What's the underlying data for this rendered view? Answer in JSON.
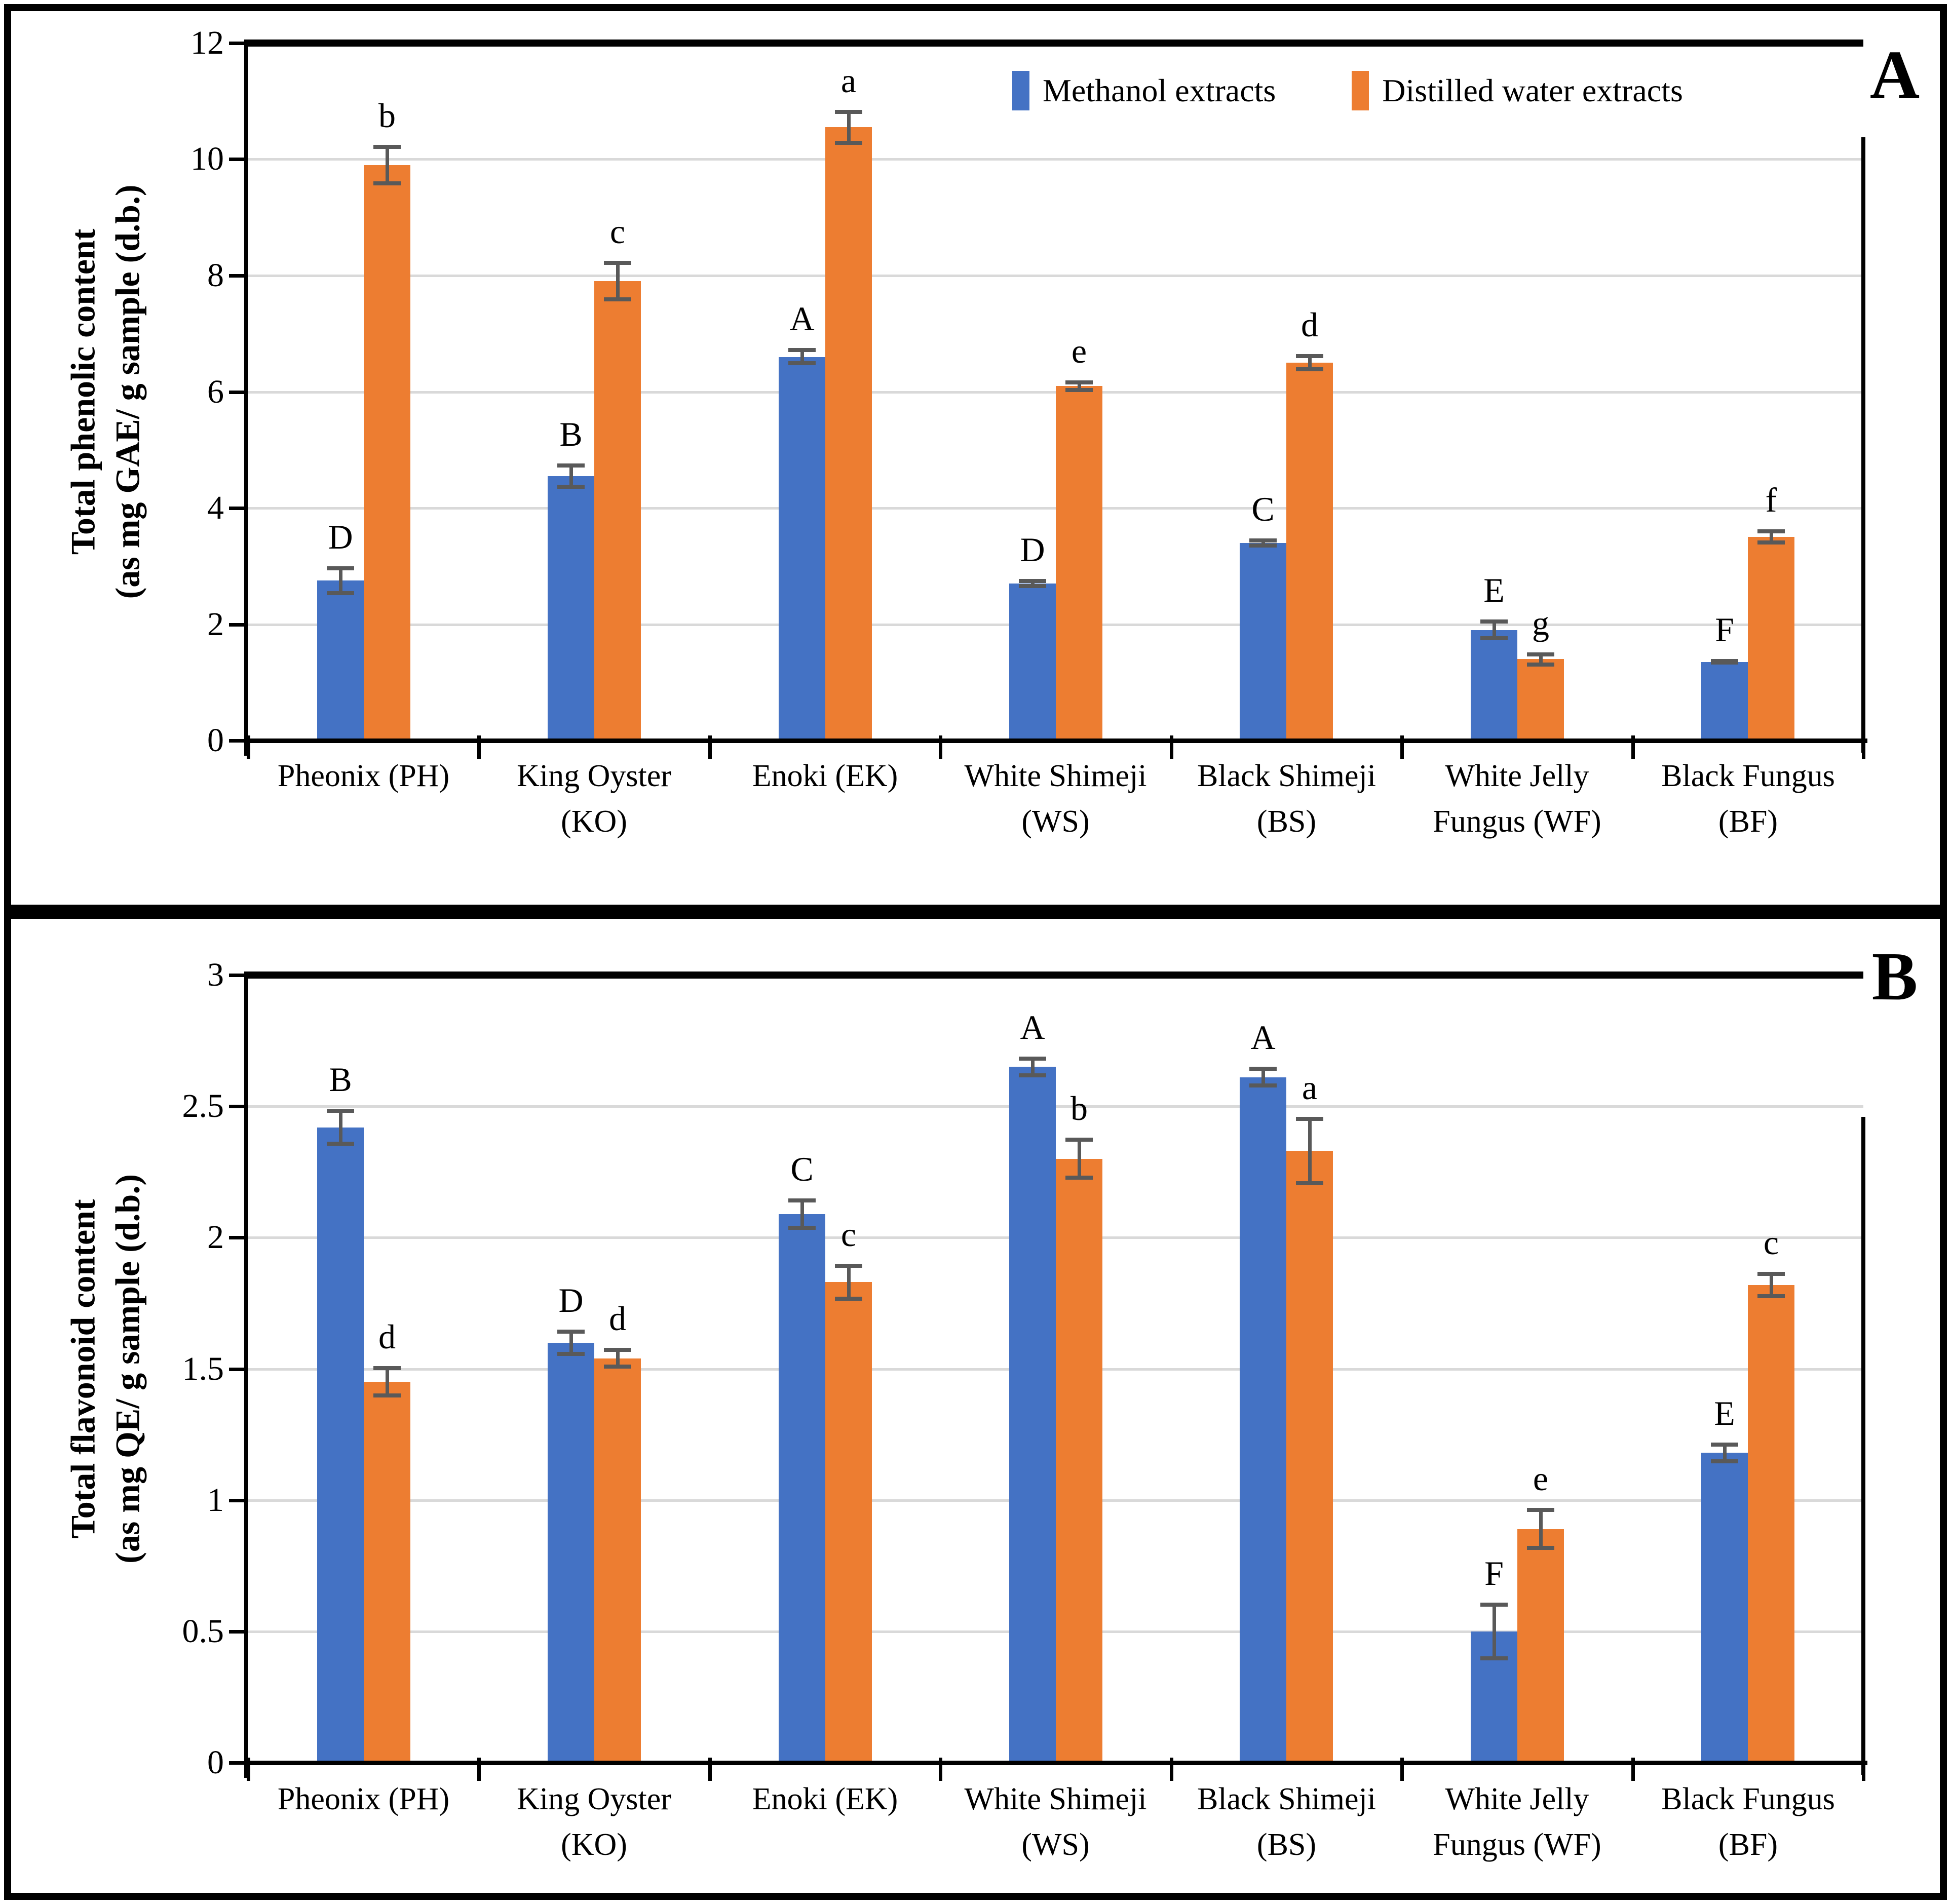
{
  "figure": {
    "background": "#ffffff",
    "border_color": "#000000"
  },
  "legend": {
    "items": [
      {
        "label": "Methanol extracts",
        "color": "#4472C4"
      },
      {
        "label": "Distilled water extracts",
        "color": "#ED7D31"
      }
    ]
  },
  "chart_data": [
    {
      "type": "bar",
      "panel_label": "A",
      "title": "",
      "xlabel": "",
      "ylabel_lines": [
        "Total phenolic content",
        "(as mg GAE/ g sample (d.b.)"
      ],
      "ylim": [
        0,
        12
      ],
      "yticks": [
        0,
        2,
        4,
        6,
        8,
        10,
        12
      ],
      "ytick_labels": [
        "0",
        "2",
        "4",
        "6",
        "8",
        "10",
        "12"
      ],
      "grid": true,
      "gridline_color": "#D9D9D9",
      "error_bar_color": "#595959",
      "legend_visible": true,
      "legend_position": "top-inside",
      "categories": [
        {
          "code": "PH",
          "lines": [
            "Pheonix (PH)"
          ]
        },
        {
          "code": "KO",
          "lines": [
            "King Oyster",
            "(KO)"
          ]
        },
        {
          "code": "EK",
          "lines": [
            "Enoki (EK)"
          ]
        },
        {
          "code": "WS",
          "lines": [
            "White Shimeji",
            "(WS)"
          ]
        },
        {
          "code": "BS",
          "lines": [
            "Black Shimeji",
            "(BS)"
          ]
        },
        {
          "code": "WF",
          "lines": [
            "White Jelly",
            "Fungus (WF)"
          ]
        },
        {
          "code": "BF",
          "lines": [
            "Black Fungus",
            "(BF)"
          ]
        }
      ],
      "series": [
        {
          "name": "Methanol extracts",
          "color": "#4472C4",
          "values": [
            2.75,
            4.55,
            6.6,
            2.7,
            3.4,
            1.9,
            1.35
          ],
          "errors": [
            0.25,
            0.22,
            0.15,
            0.08,
            0.08,
            0.18,
            0.05
          ],
          "letters": [
            "D",
            "B",
            "A",
            "D",
            "C",
            "E",
            "F"
          ]
        },
        {
          "name": "Distilled water extracts",
          "color": "#ED7D31",
          "values": [
            9.9,
            7.9,
            10.55,
            6.1,
            6.5,
            1.4,
            3.5
          ],
          "errors": [
            0.35,
            0.35,
            0.3,
            0.1,
            0.15,
            0.12,
            0.13
          ],
          "letters": [
            "b",
            "c",
            "a",
            "e",
            "d",
            "g",
            "f"
          ]
        }
      ]
    },
    {
      "type": "bar",
      "panel_label": "B",
      "title": "",
      "xlabel": "",
      "ylabel_lines": [
        "Total flavonoid content",
        "(as mg QE/ g sample (d.b.)"
      ],
      "ylim": [
        0,
        3
      ],
      "yticks": [
        0,
        0.5,
        1,
        1.5,
        2,
        2.5,
        3
      ],
      "ytick_labels": [
        "0",
        "0.5",
        "1",
        "1.5",
        "2",
        "2.5",
        "3"
      ],
      "grid": true,
      "gridline_color": "#D9D9D9",
      "error_bar_color": "#595959",
      "legend_visible": false,
      "categories": [
        {
          "code": "PH",
          "lines": [
            "Pheonix (PH)"
          ]
        },
        {
          "code": "KO",
          "lines": [
            "King Oyster",
            "(KO)"
          ]
        },
        {
          "code": "EK",
          "lines": [
            "Enoki (EK)"
          ]
        },
        {
          "code": "WS",
          "lines": [
            "White Shimeji",
            "(WS)"
          ]
        },
        {
          "code": "BS",
          "lines": [
            "Black Shimeji",
            "(BS)"
          ]
        },
        {
          "code": "WF",
          "lines": [
            "White Jelly",
            "Fungus (WF)"
          ]
        },
        {
          "code": "BF",
          "lines": [
            "Black Fungus",
            "(BF)"
          ]
        }
      ],
      "series": [
        {
          "name": "Methanol extracts",
          "color": "#4472C4",
          "values": [
            2.42,
            1.6,
            2.09,
            2.65,
            2.61,
            0.5,
            1.18
          ],
          "errors": [
            0.07,
            0.05,
            0.06,
            0.04,
            0.04,
            0.11,
            0.04
          ],
          "letters": [
            "B",
            "D",
            "C",
            "A",
            "A",
            "F",
            "E"
          ]
        },
        {
          "name": "Distilled water extracts",
          "color": "#ED7D31",
          "values": [
            1.45,
            1.54,
            1.83,
            2.3,
            2.33,
            0.89,
            1.82
          ],
          "errors": [
            0.06,
            0.04,
            0.07,
            0.08,
            0.13,
            0.08,
            0.05
          ],
          "letters": [
            "d",
            "d",
            "c",
            "b",
            "a",
            "e",
            "c"
          ]
        }
      ]
    }
  ]
}
